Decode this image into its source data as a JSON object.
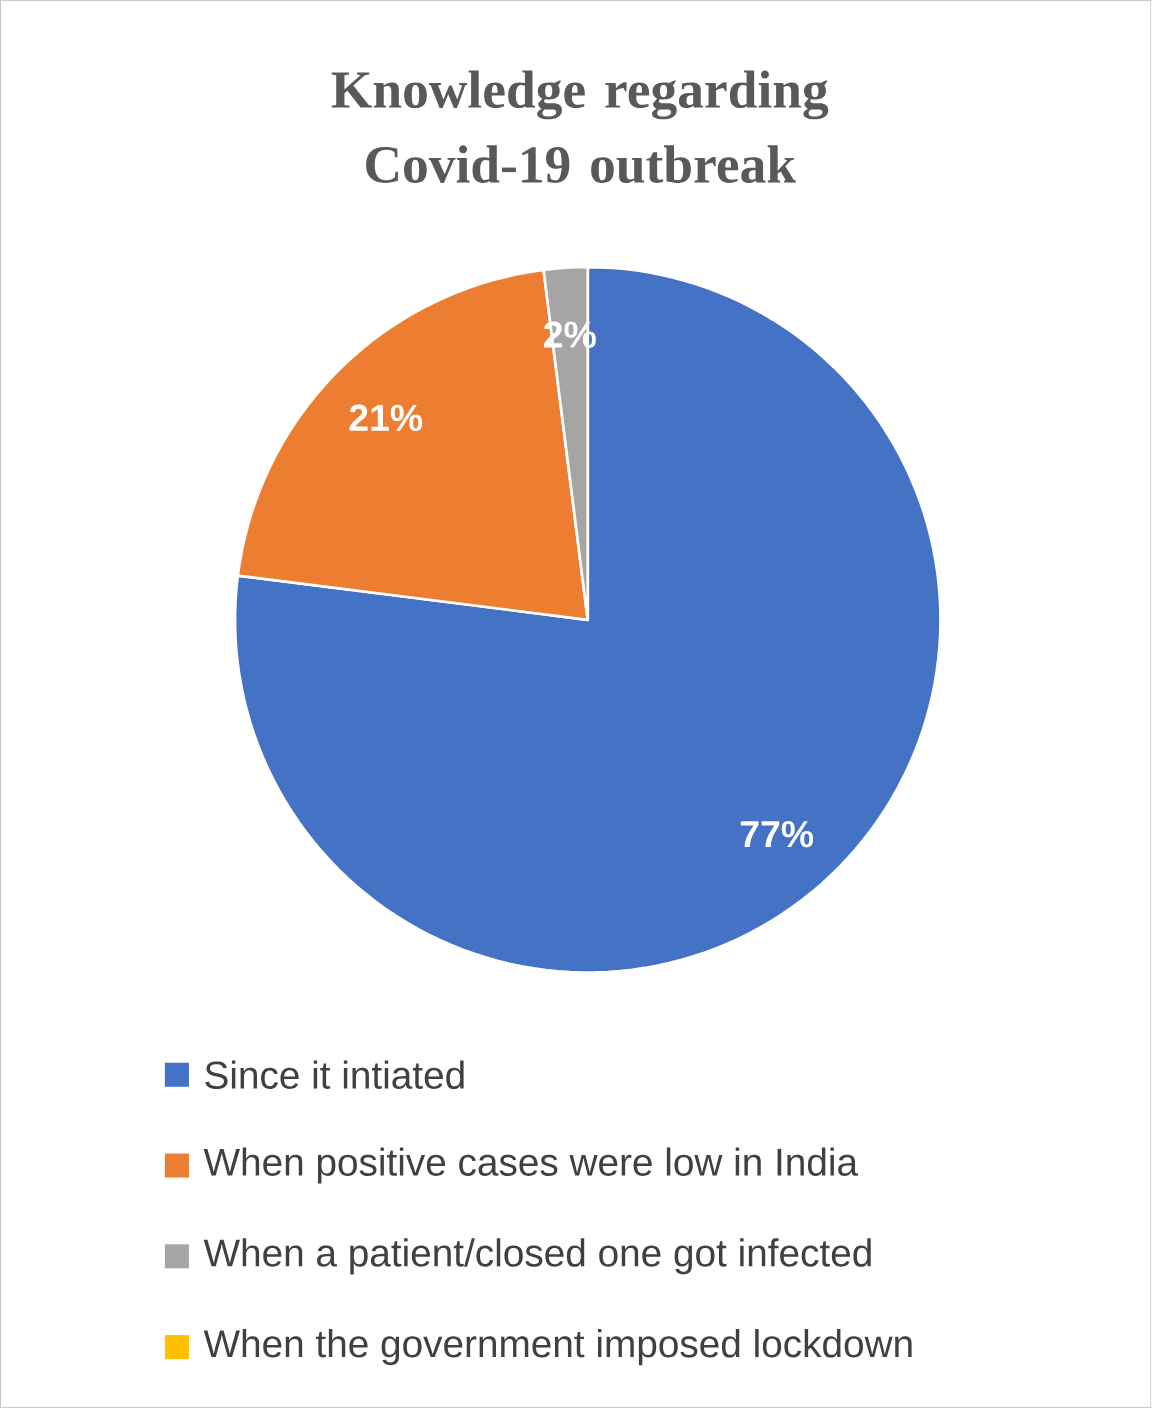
{
  "chart_data": {
    "type": "pie",
    "title": "Knowledge regarding Covid-19 outbreak",
    "categories": [
      "Since it intiated",
      "When positive cases were low in India",
      "When a patient/closed one got infected",
      "When the government imposed lockdown"
    ],
    "values": [
      77,
      21,
      2,
      0
    ],
    "colors": [
      "#4472c4",
      "#ed7d31",
      "#a5a5a5",
      "#ffc000"
    ],
    "value_labels": [
      "77%",
      "21%",
      "2%",
      null
    ],
    "legend": "bottom"
  }
}
